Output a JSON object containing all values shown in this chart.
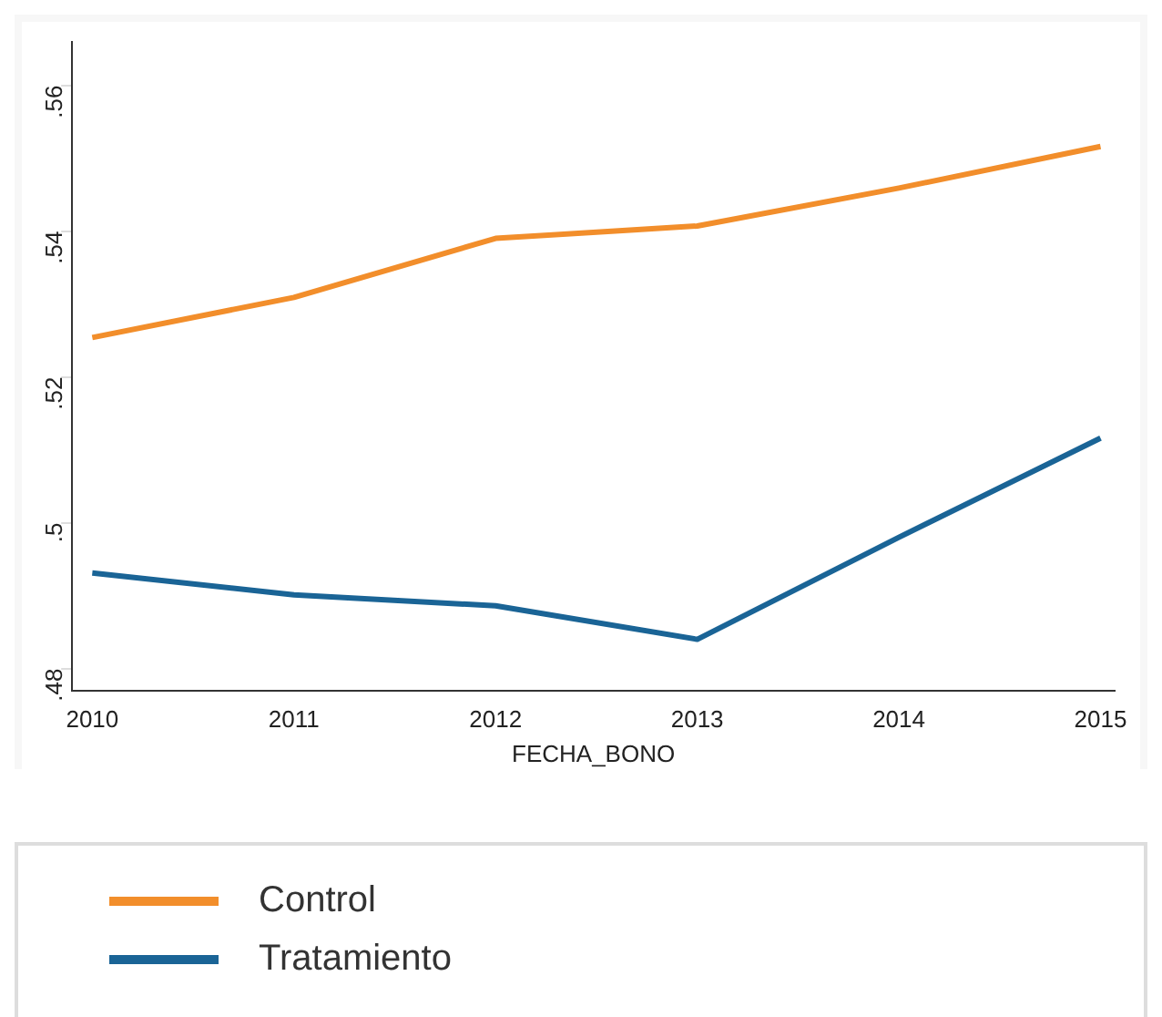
{
  "chart_data": {
    "type": "line",
    "xlabel": "FECHA_BONO",
    "x": [
      2010,
      2011,
      2012,
      2013,
      2014,
      2015
    ],
    "series": [
      {
        "name": "Control",
        "color": "#f28e2b",
        "values": [
          0.5254,
          0.5309,
          0.539,
          0.5407,
          0.5459,
          0.5516
        ]
      },
      {
        "name": "Tratamiento",
        "color": "#1a6496",
        "values": [
          0.4931,
          0.4901,
          0.4886,
          0.484,
          0.498,
          0.5116
        ]
      }
    ],
    "xlim": [
      2009.9,
      2015.07
    ],
    "xticks": [
      2010,
      2011,
      2012,
      2013,
      2014,
      2015
    ],
    "ylim": [
      0.477,
      0.566
    ],
    "yticks": [
      {
        "value": 0.48,
        "label": ".48"
      },
      {
        "value": 0.5,
        "label": ".5"
      },
      {
        "value": 0.52,
        "label": ".52"
      },
      {
        "value": 0.54,
        "label": ".54"
      },
      {
        "value": 0.56,
        "label": ".56"
      }
    ],
    "grid": false,
    "legend": "bottom",
    "marker": "none",
    "line_style": "solid"
  }
}
